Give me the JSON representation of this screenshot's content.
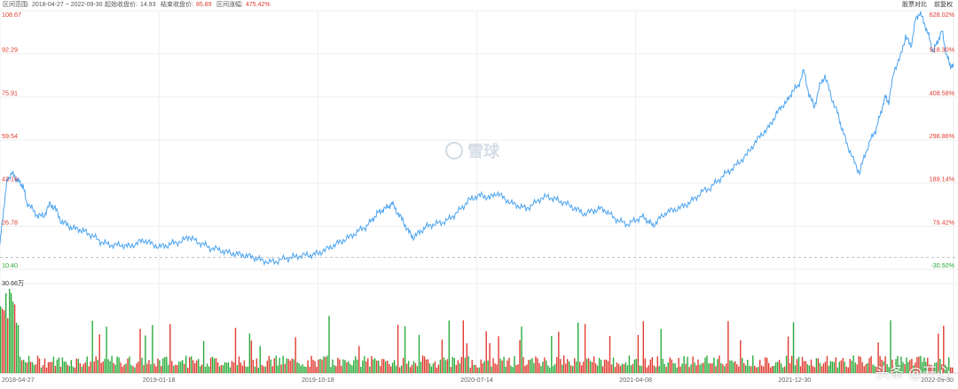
{
  "header": {
    "range_label": "区间范围:",
    "range_value": "2018-04-27 ~ 2022-09-30",
    "start_label": "起始收盘价:",
    "start_value": "14.93",
    "end_label": "结束收盘价:",
    "end_value": "85.89",
    "change_label": "区间涨幅:",
    "change_value": "475.42%",
    "compare_button": "股票对比",
    "adjust_button": "前复权"
  },
  "watermark": {
    "brand": "雪球",
    "corner": "头条 @开心"
  },
  "colors": {
    "line": "#4aa3f0",
    "up": "#e03c31",
    "down": "#2bac3b",
    "grid": "#eeeeee",
    "text": "#666666"
  },
  "chart_data": {
    "type": "line",
    "x_ticks": [
      "2018-04-27",
      "2019-01-18",
      "2019-10-18",
      "2020-07-14",
      "2021-04-08",
      "2021-12-30",
      "2022-09-30"
    ],
    "y_left_ticks": [
      "108.67",
      "92.29",
      "75.91",
      "59.54",
      "43.16",
      "26.78",
      "10.40"
    ],
    "y_right_ticks": [
      "628.02%",
      "518.30%",
      "408.58%",
      "298.86%",
      "189.14%",
      "79.42%",
      "-30.50%"
    ],
    "ylim": [
      10.4,
      108.67
    ],
    "baseline_price": 14.93,
    "volume_label": "30.66万",
    "volume_max": 30.66,
    "price_series": [
      [
        0,
        20
      ],
      [
        0.004,
        33
      ],
      [
        0.008,
        44
      ],
      [
        0.013,
        47
      ],
      [
        0.018,
        45
      ],
      [
        0.022,
        43.5
      ],
      [
        0.026,
        42
      ],
      [
        0.03,
        36
      ],
      [
        0.037,
        33
      ],
      [
        0.043,
        30.5
      ],
      [
        0.05,
        31
      ],
      [
        0.056,
        35
      ],
      [
        0.062,
        34
      ],
      [
        0.068,
        29
      ],
      [
        0.075,
        27.5
      ],
      [
        0.082,
        26
      ],
      [
        0.09,
        25.5
      ],
      [
        0.097,
        24.5
      ],
      [
        0.105,
        23
      ],
      [
        0.113,
        21
      ],
      [
        0.121,
        20
      ],
      [
        0.129,
        19.5
      ],
      [
        0.138,
        19.7
      ],
      [
        0.146,
        19
      ],
      [
        0.155,
        20.5
      ],
      [
        0.163,
        21.5
      ],
      [
        0.171,
        20
      ],
      [
        0.18,
        19
      ],
      [
        0.188,
        19.5
      ],
      [
        0.196,
        20.5
      ],
      [
        0.205,
        21
      ],
      [
        0.213,
        23
      ],
      [
        0.221,
        21
      ],
      [
        0.229,
        20
      ],
      [
        0.237,
        18.5
      ],
      [
        0.246,
        18
      ],
      [
        0.254,
        17
      ],
      [
        0.263,
        16.5
      ],
      [
        0.271,
        16
      ],
      [
        0.279,
        15.5
      ],
      [
        0.287,
        14.8
      ],
      [
        0.295,
        13.8
      ],
      [
        0.304,
        13.2
      ],
      [
        0.312,
        13.5
      ],
      [
        0.321,
        14.5
      ],
      [
        0.329,
        15
      ],
      [
        0.337,
        15.5
      ],
      [
        0.346,
        15.8
      ],
      [
        0.354,
        16
      ],
      [
        0.362,
        17
      ],
      [
        0.371,
        18.5
      ],
      [
        0.379,
        20
      ],
      [
        0.387,
        21.5
      ],
      [
        0.396,
        23
      ],
      [
        0.404,
        25
      ],
      [
        0.412,
        26.5
      ],
      [
        0.419,
        29
      ],
      [
        0.425,
        31.5
      ],
      [
        0.431,
        33
      ],
      [
        0.437,
        34
      ],
      [
        0.442,
        35.5
      ],
      [
        0.448,
        32
      ],
      [
        0.454,
        29
      ],
      [
        0.46,
        25
      ],
      [
        0.466,
        22.5
      ],
      [
        0.473,
        24.5
      ],
      [
        0.48,
        26.5
      ],
      [
        0.488,
        27.5
      ],
      [
        0.496,
        28
      ],
      [
        0.504,
        29
      ],
      [
        0.512,
        31
      ],
      [
        0.52,
        33.5
      ],
      [
        0.528,
        36.5
      ],
      [
        0.536,
        38
      ],
      [
        0.544,
        38.5
      ],
      [
        0.552,
        37.5
      ],
      [
        0.56,
        39.5
      ],
      [
        0.568,
        37.5
      ],
      [
        0.577,
        35.5
      ],
      [
        0.585,
        34.5
      ],
      [
        0.593,
        33.5
      ],
      [
        0.601,
        35
      ],
      [
        0.61,
        37.5
      ],
      [
        0.618,
        38
      ],
      [
        0.626,
        37
      ],
      [
        0.634,
        36
      ],
      [
        0.643,
        34.5
      ],
      [
        0.651,
        33
      ],
      [
        0.659,
        31.5
      ],
      [
        0.668,
        32.5
      ],
      [
        0.676,
        33.5
      ],
      [
        0.684,
        32.5
      ],
      [
        0.692,
        30
      ],
      [
        0.7,
        28.5
      ],
      [
        0.708,
        27.5
      ],
      [
        0.716,
        29
      ],
      [
        0.724,
        30.5
      ],
      [
        0.73,
        29
      ],
      [
        0.736,
        27
      ],
      [
        0.743,
        29.5
      ],
      [
        0.751,
        32
      ],
      [
        0.759,
        33
      ],
      [
        0.768,
        34
      ],
      [
        0.776,
        35.5
      ],
      [
        0.784,
        37.5
      ],
      [
        0.792,
        40
      ],
      [
        0.801,
        41.5
      ],
      [
        0.809,
        44
      ],
      [
        0.817,
        46.5
      ],
      [
        0.825,
        48.5
      ],
      [
        0.833,
        51
      ],
      [
        0.842,
        54
      ],
      [
        0.85,
        58
      ],
      [
        0.858,
        61.5
      ],
      [
        0.866,
        64
      ],
      [
        0.873,
        68
      ],
      [
        0.88,
        72
      ],
      [
        0.887,
        74
      ],
      [
        0.893,
        78
      ],
      [
        0.9,
        80
      ],
      [
        0.906,
        86
      ],
      [
        0.912,
        77
      ],
      [
        0.918,
        72
      ],
      [
        0.924,
        80
      ],
      [
        0.93,
        84
      ],
      [
        0.937,
        76
      ],
      [
        0.944,
        70
      ],
      [
        0.949,
        64
      ],
      [
        0.955,
        58
      ],
      [
        0.962,
        52
      ],
      [
        0.969,
        47
      ],
      [
        0.975,
        54
      ],
      [
        0.982,
        60
      ],
      [
        0.988,
        64
      ],
      [
        0.993,
        70
      ],
      [
        0.998,
        76
      ],
      [
        1.002,
        74
      ],
      [
        1.008,
        86
      ],
      [
        1.015,
        91
      ],
      [
        1.021,
        99
      ],
      [
        1.027,
        95
      ],
      [
        1.032,
        105
      ],
      [
        1.037,
        108
      ],
      [
        1.042,
        104
      ],
      [
        1.047,
        99
      ],
      [
        1.052,
        93
      ],
      [
        1.057,
        97
      ],
      [
        1.062,
        101
      ],
      [
        1.067,
        92
      ],
      [
        1.071,
        88
      ],
      [
        1.075,
        87.5
      ]
    ]
  }
}
